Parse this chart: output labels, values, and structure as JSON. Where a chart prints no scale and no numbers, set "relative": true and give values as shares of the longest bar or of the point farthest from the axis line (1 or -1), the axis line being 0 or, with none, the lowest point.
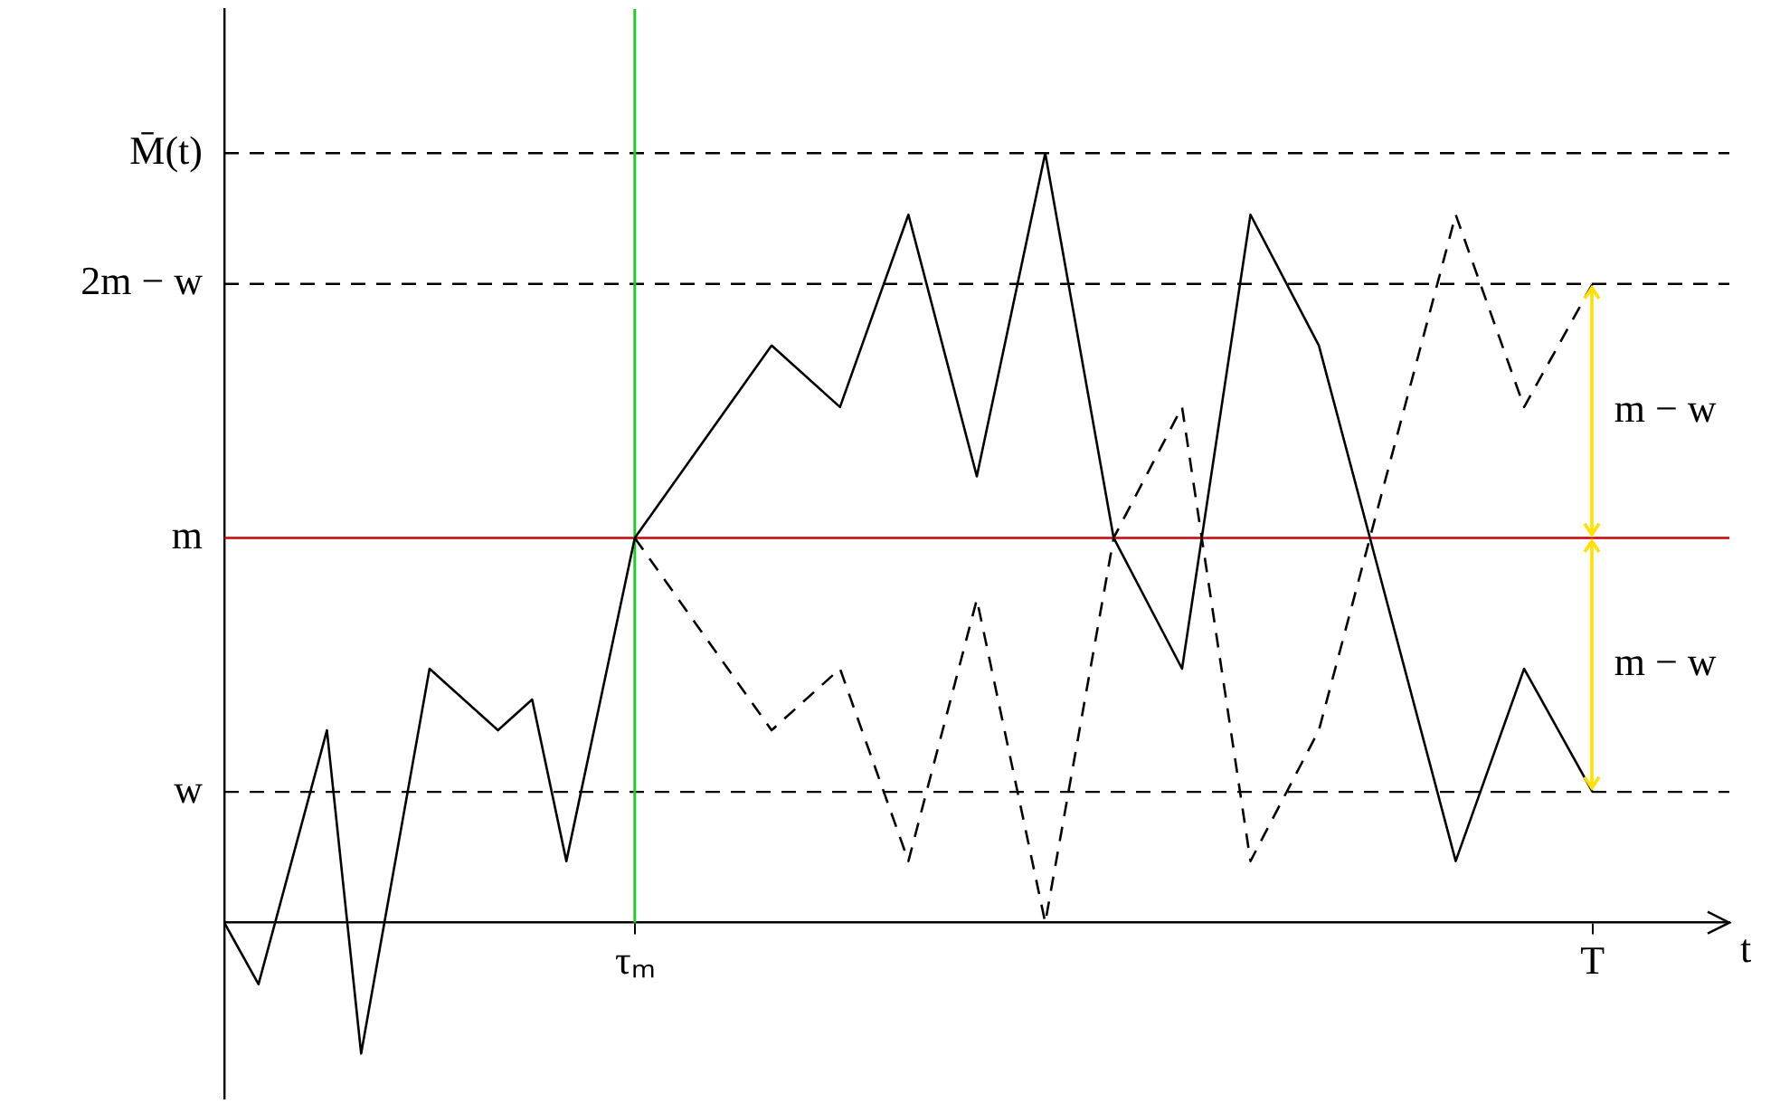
{
  "chart_data": {
    "type": "line",
    "relative": true,
    "xlabel": "t",
    "categories": [
      null,
      null,
      null,
      null,
      null,
      null,
      null,
      null,
      null,
      null,
      null,
      null,
      "τₘ",
      null,
      null,
      null,
      null,
      null,
      null,
      null,
      null,
      null,
      null,
      null,
      null,
      null,
      null,
      null,
      null,
      null,
      null,
      null,
      null,
      null,
      null,
      null,
      null,
      null,
      null,
      null,
      "T",
      null,
      null,
      null,
      null
    ],
    "series": [
      {
        "color": "#000000",
        "line_style": "solid",
        "values": [
          0,
          -0.08,
          null,
          0.25,
          -0.17,
          null,
          0.33,
          null,
          0.25,
          0.29,
          0.08,
          null,
          0.5,
          null,
          null,
          null,
          0.75,
          null,
          0.67,
          null,
          0.92,
          null,
          0.58,
          null,
          1.0,
          null,
          0.5,
          null,
          0.33,
          null,
          0.92,
          null,
          0.75,
          null,
          null,
          null,
          0.08,
          null,
          0.33,
          null,
          0.17,
          null,
          null,
          null,
          null
        ]
      },
      {
        "color": "#000000",
        "line_style": "dashed",
        "values": [
          null,
          null,
          null,
          null,
          null,
          null,
          null,
          null,
          null,
          null,
          null,
          null,
          0.5,
          null,
          null,
          null,
          0.25,
          null,
          0.33,
          null,
          0.08,
          null,
          0.42,
          null,
          0,
          null,
          0.5,
          null,
          0.67,
          null,
          0.08,
          null,
          0.25,
          null,
          null,
          null,
          0.92,
          null,
          0.67,
          null,
          0.83,
          null,
          null,
          null,
          null
        ]
      }
    ],
    "ref_lines": [
      {
        "axis": "y",
        "value": 1.0,
        "label": "M̄(t)",
        "line_style": "dashed",
        "color": "#000000"
      },
      {
        "axis": "y",
        "value": 0.83,
        "label": "2m − w",
        "line_style": "dashed",
        "color": "#000000"
      },
      {
        "axis": "y",
        "value": 0.5,
        "label": "m",
        "line_style": "solid",
        "color": "#cc0000"
      },
      {
        "axis": "y",
        "value": 0.17,
        "label": "w",
        "line_style": "dashed",
        "color": "#000000"
      },
      {
        "axis": "x",
        "value": "τₘ",
        "line_style": "solid",
        "color": "#22cc22"
      }
    ],
    "annotations": [
      "m − w",
      "m − w"
    ],
    "marker": "none",
    "grid": false,
    "legend": false
  }
}
